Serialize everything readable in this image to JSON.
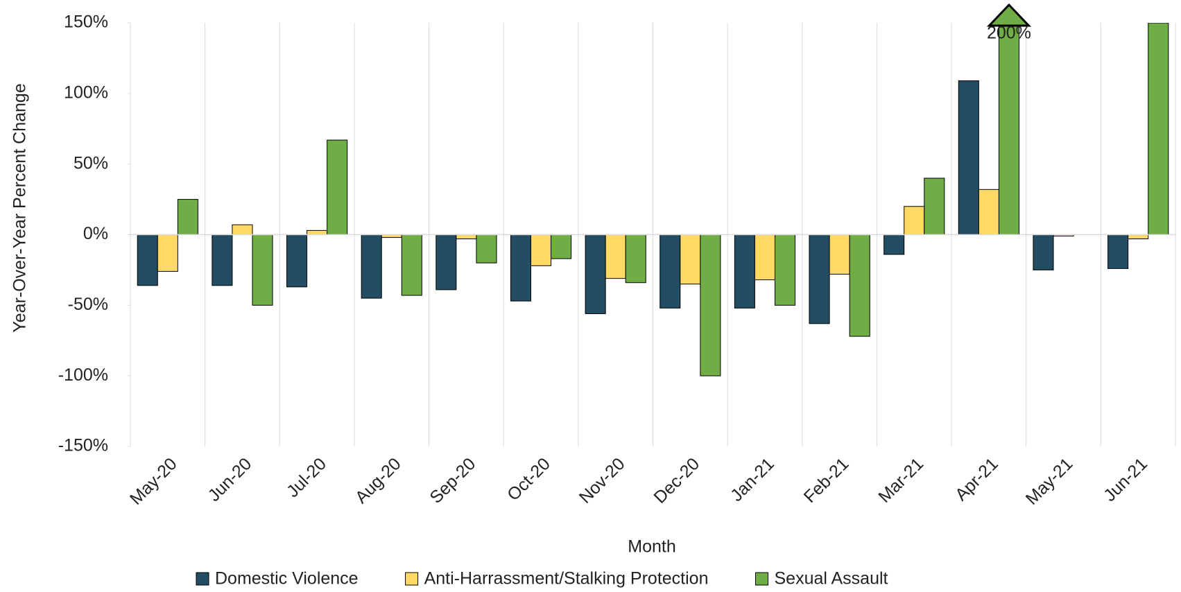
{
  "chart_data": {
    "type": "bar",
    "x_label": "Month",
    "y_label": "Year-Over-Year Percent Change",
    "categories": [
      "May-20",
      "Jun-20",
      "Jul-20",
      "Aug-20",
      "Sep-20",
      "Oct-20",
      "Nov-20",
      "Dec-20",
      "Jan-21",
      "Feb-21",
      "Mar-21",
      "Apr-21",
      "May-21",
      "Jun-21"
    ],
    "series": [
      {
        "name": "Domestic Violence",
        "color": "#234d63",
        "values": [
          -36,
          -36,
          -37,
          -45,
          -39,
          -47,
          -56,
          -52,
          -52,
          -63,
          -14,
          109,
          -25,
          -24
        ]
      },
      {
        "name": "Anti-Harrassment/Stalking Protection",
        "color": "#ffd966",
        "values": [
          -26,
          7,
          3,
          -2,
          -3,
          -22,
          -31,
          -35,
          -32,
          -28,
          20,
          32,
          -1,
          -3
        ]
      },
      {
        "name": "Sexual Assault",
        "color": "#70ad47",
        "values": [
          25,
          -50,
          67,
          -43,
          -20,
          -17,
          -34,
          -100,
          -50,
          -72,
          40,
          200,
          null,
          150
        ],
        "value_labels": [
          null,
          null,
          null,
          null,
          null,
          null,
          null,
          null,
          null,
          null,
          null,
          "200%",
          null,
          null
        ]
      }
    ],
    "ylim": [
      -150,
      150
    ],
    "yticks": [
      {
        "value": -150,
        "label": "-150%"
      },
      {
        "value": -100,
        "label": "-100%"
      },
      {
        "value": -50,
        "label": "-50%"
      },
      {
        "value": 0,
        "label": "0%"
      },
      {
        "value": 50,
        "label": "50%"
      },
      {
        "value": 100,
        "label": "100%"
      },
      {
        "value": 150,
        "label": "150%"
      }
    ],
    "legend": "bottom"
  }
}
